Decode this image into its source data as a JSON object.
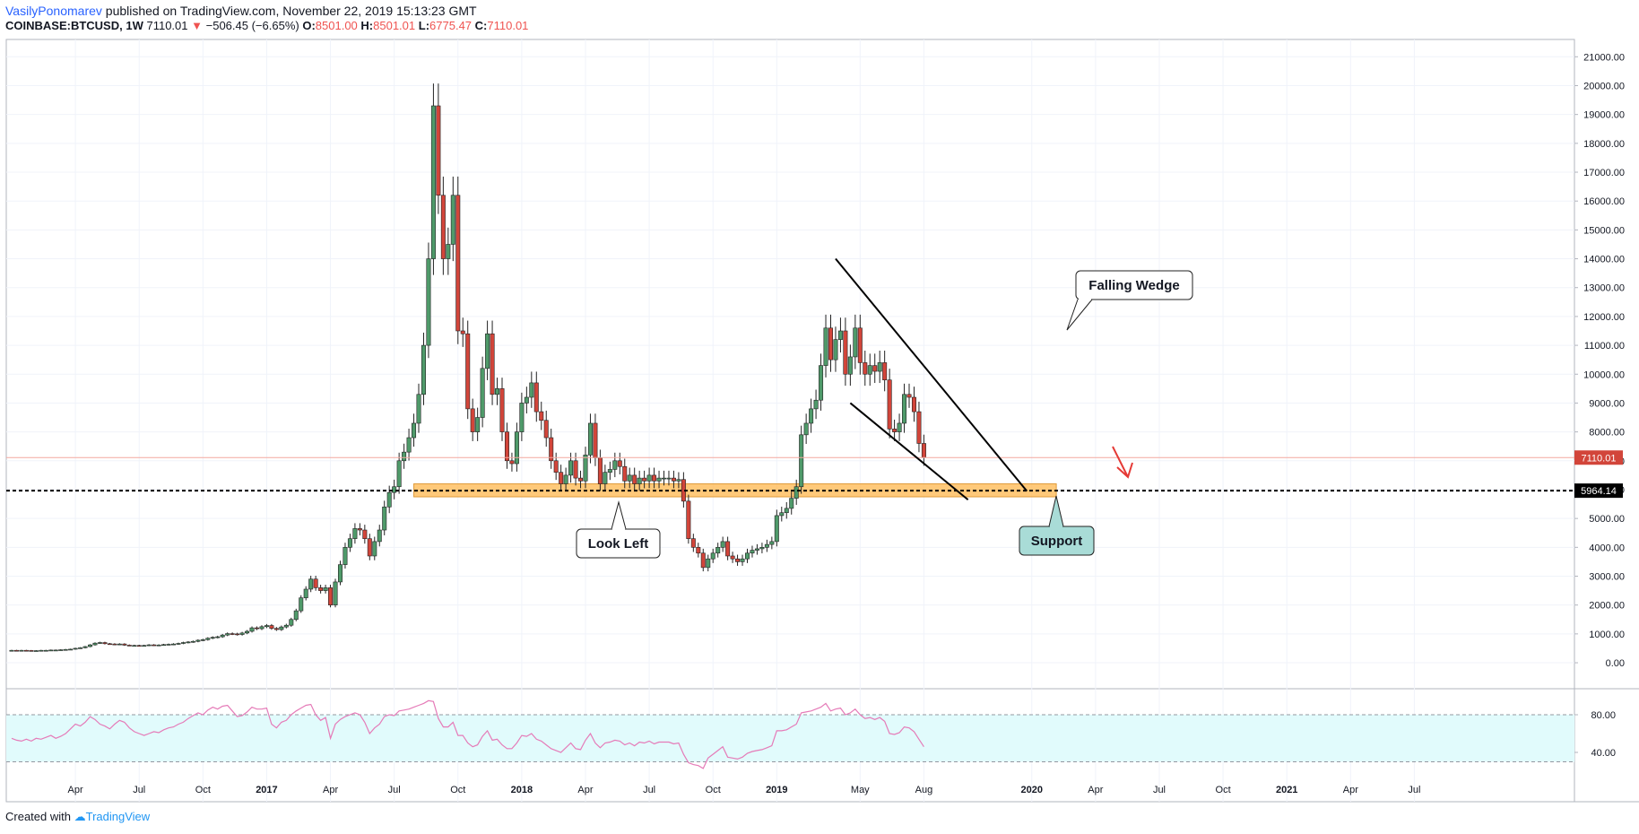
{
  "header": {
    "author": "VasilyPonomarev",
    "published": " published on TradingView.com, November 22, 2019 15:13:23 GMT",
    "symbol": "COINBASE:BTCUSD, 1W",
    "last": "7110.01",
    "change_arrow": "▼",
    "change": "−506.45 (−6.65%)",
    "o_label": "O:",
    "o_value": "8501.00",
    "h_label": "H:",
    "h_value": "8501.01",
    "l_label": "L:",
    "l_value": "6775.47",
    "c_label": "C:",
    "c_value": "7110.01"
  },
  "footer": {
    "created": "Created with",
    "brand": "TradingView"
  },
  "colors": {
    "up": "#4f9a6a",
    "down": "#d2453a",
    "zone": "#ffb74d",
    "rsi_line": "#e57bb8",
    "rsi_fill": "#e1fbfc",
    "accent": "#2962ff"
  },
  "chart_data": {
    "type": "candlestick",
    "title": "COINBASE:BTCUSD, 1W",
    "x_ticks": [
      "Apr",
      "Jul",
      "Oct",
      "2017",
      "Apr",
      "Jul",
      "Oct",
      "2018",
      "Apr",
      "Jul",
      "Oct",
      "2019",
      "May",
      "Aug",
      "2020",
      "Apr",
      "Jul",
      "Oct",
      "2021",
      "Apr",
      "Jul"
    ],
    "x_tick_weeks": [
      13,
      26,
      39,
      52,
      65,
      78,
      91,
      104,
      117,
      130,
      143,
      156,
      173,
      186,
      208,
      221,
      234,
      247,
      260,
      273,
      286
    ],
    "y_ticks": [
      0,
      1000,
      2000,
      3000,
      4000,
      5000,
      6000,
      7000,
      8000,
      9000,
      10000,
      11000,
      12000,
      13000,
      14000,
      15000,
      16000,
      17000,
      18000,
      19000,
      20000,
      21000
    ],
    "y_tick_labels": [
      "0.00",
      "1000.00",
      "2000.00",
      "3000.00",
      "4000.00",
      "5000.00",
      "6000.00",
      "7000.00",
      "8000.00",
      "9000.00",
      "10000.00",
      "11000.00",
      "12000.00",
      "13000.00",
      "14000.00",
      "15000.00",
      "16000.00",
      "17000.00",
      "18000.00",
      "19000.00",
      "20000.00",
      "21000.00"
    ],
    "ylim": [
      -900,
      21600
    ],
    "closes": [
      430,
      420,
      430,
      425,
      420,
      420,
      430,
      430,
      440,
      440,
      450,
      460,
      470,
      500,
      520,
      560,
      620,
      680,
      700,
      660,
      650,
      640,
      650,
      610,
      600,
      600,
      590,
      600,
      620,
      610,
      615,
      630,
      640,
      650,
      670,
      700,
      720,
      740,
      780,
      800,
      850,
      880,
      900,
      960,
      1010,
      1000,
      980,
      1030,
      1090,
      1210,
      1180,
      1250,
      1290,
      1190,
      1150,
      1240,
      1300,
      1500,
      1800,
      2250,
      2550,
      2900,
      2600,
      2500,
      2600,
      2000,
      2800,
      3400,
      4000,
      4300,
      4650,
      4600,
      4300,
      3700,
      4200,
      4600,
      5400,
      5900,
      6100,
      7000,
      7300,
      7800,
      8300,
      9300,
      11000,
      14000,
      19300,
      16200,
      14000,
      14500,
      16200,
      11500,
      11400,
      8800,
      8000,
      8500,
      10200,
      11400,
      9300,
      9500,
      8000,
      7000,
      6900,
      8000,
      9000,
      9200,
      9700,
      8700,
      8400,
      7800,
      7000,
      6600,
      6200,
      6500,
      7000,
      6400,
      6300,
      7200,
      8300,
      7100,
      6200,
      6600,
      6700,
      7000,
      6800,
      6300,
      6500,
      6200,
      6400,
      6300,
      6500,
      6300,
      6400,
      6400,
      6400,
      6300,
      6350,
      5600,
      4300,
      4000,
      3800,
      3300,
      3600,
      3800,
      4000,
      4200,
      3700,
      3600,
      3500,
      3600,
      3800,
      3900,
      3950,
      4000,
      4100,
      4200,
      5100,
      5200,
      5350,
      5700,
      6100,
      7900,
      8300,
      8800,
      9100,
      10300,
      11600,
      10500,
      11200,
      11500,
      10000,
      10600,
      11600,
      10400,
      10000,
      10300,
      10100,
      10400,
      9800,
      8100,
      8000,
      8300,
      9300,
      9200,
      8700,
      7600,
      7110
    ],
    "annotations": [
      "Falling Wedge",
      "Look Left",
      "Support"
    ],
    "support_level": "5964.14",
    "last_price_label": "7110.01",
    "support_zone": [
      5750,
      6200
    ],
    "rsi": {
      "y_tick_labels": [
        "80.00",
        "40.00"
      ],
      "bands": [
        80,
        30
      ],
      "values": [
        55,
        53,
        52,
        54,
        52,
        55,
        54,
        56,
        58,
        55,
        57,
        60,
        65,
        70,
        68,
        72,
        78,
        75,
        70,
        68,
        65,
        70,
        74,
        72,
        66,
        62,
        60,
        58,
        60,
        62,
        61,
        64,
        66,
        67,
        70,
        72,
        76,
        79,
        82,
        80,
        85,
        88,
        86,
        89,
        90,
        84,
        78,
        79,
        83,
        88,
        86,
        86,
        87,
        70,
        66,
        72,
        74,
        80,
        84,
        87,
        90,
        91,
        80,
        74,
        77,
        55,
        70,
        75,
        78,
        80,
        82,
        80,
        72,
        60,
        66,
        70,
        78,
        80,
        79,
        84,
        85,
        86,
        88,
        90,
        92,
        95,
        94,
        76,
        67,
        67,
        72,
        58,
        58,
        50,
        46,
        48,
        57,
        63,
        53,
        54,
        48,
        44,
        44,
        50,
        58,
        57,
        60,
        54,
        52,
        48,
        44,
        42,
        40,
        45,
        50,
        44,
        43,
        53,
        60,
        50,
        45,
        50,
        51,
        53,
        52,
        48,
        50,
        47,
        51,
        50,
        52,
        49,
        51,
        51,
        51,
        49,
        50,
        38,
        29,
        27,
        26,
        23,
        34,
        38,
        42,
        46,
        35,
        34,
        33,
        35,
        39,
        41,
        42,
        43,
        45,
        47,
        63,
        63,
        64,
        67,
        70,
        82,
        83,
        84,
        86,
        88,
        92,
        84,
        86,
        87,
        80,
        82,
        86,
        80,
        76,
        77,
        75,
        77,
        73,
        60,
        59,
        61,
        67,
        66,
        62,
        54,
        46
      ]
    }
  }
}
